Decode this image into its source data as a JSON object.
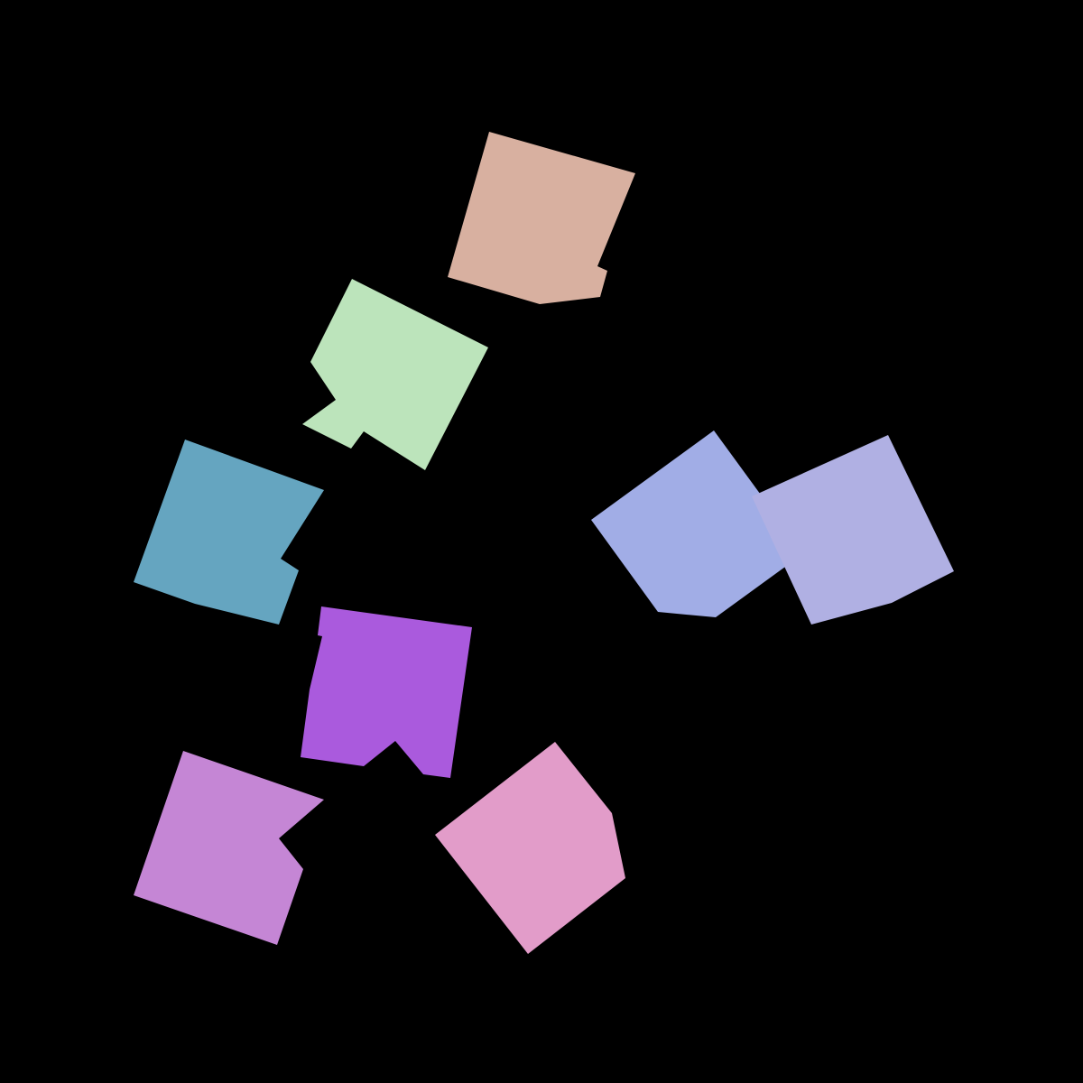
{
  "scene": {
    "background": "#000000",
    "shapes": [
      {
        "name": "peach-shape",
        "color": "#d8b0a0"
      },
      {
        "name": "mint-shape",
        "color": "#bce4bb"
      },
      {
        "name": "teal-shape",
        "color": "#65a5c0"
      },
      {
        "name": "periwinkle-shape",
        "color": "#a1ade6"
      },
      {
        "name": "lavender-shape",
        "color": "#b0b0e3"
      },
      {
        "name": "purple-shape",
        "color": "#aa5add"
      },
      {
        "name": "orchid-shape",
        "color": "#c586d5"
      },
      {
        "name": "pink-shape",
        "color": "#e29cc9"
      }
    ]
  }
}
